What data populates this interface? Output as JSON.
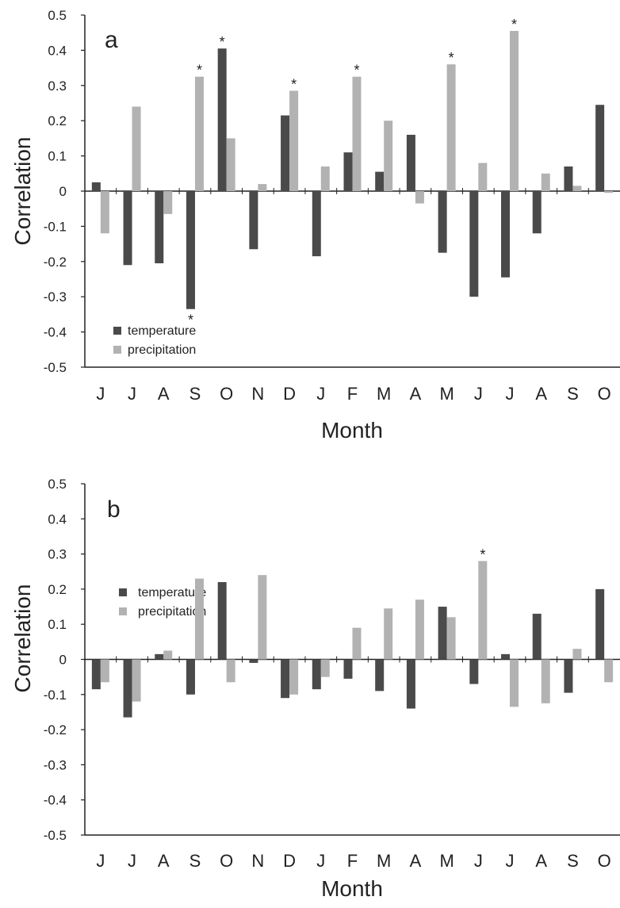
{
  "colors": {
    "temperature": "#4a4a4a",
    "precipitation": "#b2b2b2",
    "axis": "#222222"
  },
  "chart_data": [
    {
      "type": "bar",
      "panel_label": "a",
      "categories": [
        "J",
        "J",
        "A",
        "S",
        "O",
        "N",
        "D",
        "J",
        "F",
        "M",
        "A",
        "M",
        "J",
        "J",
        "A",
        "S",
        "O"
      ],
      "xlabel": "Month",
      "ylabel": "Correlation",
      "ylim": [
        -0.5,
        0.5
      ],
      "yticks": [
        "0.5",
        "0.4",
        "0.3",
        "0.2",
        "0.1",
        "0",
        "-0.1",
        "-0.2",
        "-0.3",
        "-0.4",
        "-0.5"
      ],
      "legend_position": "bottom-left",
      "series": [
        {
          "name": "temperature",
          "values": [
            0.025,
            -0.21,
            -0.205,
            -0.335,
            0.405,
            -0.165,
            0.215,
            -0.185,
            0.11,
            0.055,
            0.16,
            -0.175,
            -0.3,
            -0.245,
            -0.12,
            0.07,
            0.245
          ]
        },
        {
          "name": "precipitation",
          "values": [
            -0.12,
            0.24,
            -0.065,
            0.325,
            0.15,
            0.02,
            0.285,
            0.07,
            0.325,
            0.2,
            -0.035,
            0.36,
            0.08,
            0.455,
            0.05,
            0.015,
            -0.005
          ]
        }
      ],
      "significance_markers": [
        {
          "category_index": 3,
          "series": "temperature",
          "mark": "*"
        },
        {
          "category_index": 3,
          "series": "precipitation",
          "mark": "*"
        },
        {
          "category_index": 4,
          "series": "temperature",
          "mark": "*"
        },
        {
          "category_index": 6,
          "series": "precipitation",
          "mark": "*"
        },
        {
          "category_index": 8,
          "series": "precipitation",
          "mark": "*"
        },
        {
          "category_index": 11,
          "series": "precipitation",
          "mark": "*"
        },
        {
          "category_index": 13,
          "series": "precipitation",
          "mark": "*"
        }
      ]
    },
    {
      "type": "bar",
      "panel_label": "b",
      "categories": [
        "J",
        "J",
        "A",
        "S",
        "O",
        "N",
        "D",
        "J",
        "F",
        "M",
        "A",
        "M",
        "J",
        "J",
        "A",
        "S",
        "O"
      ],
      "xlabel": "Month",
      "ylabel": "Correlation",
      "ylim": [
        -0.5,
        0.5
      ],
      "yticks": [
        "0.5",
        "0.4",
        "0.3",
        "0.2",
        "0.1",
        "0",
        "-0.1",
        "-0.2",
        "-0.3",
        "-0.4",
        "-0.5"
      ],
      "legend_position": "bottom-left",
      "series": [
        {
          "name": "temperature",
          "values": [
            -0.085,
            -0.165,
            0.015,
            -0.1,
            0.22,
            -0.01,
            -0.11,
            -0.085,
            -0.055,
            -0.09,
            -0.14,
            0.15,
            -0.07,
            0.015,
            0.13,
            -0.095,
            0.2
          ]
        },
        {
          "name": "precipitation",
          "values": [
            -0.065,
            -0.12,
            0.025,
            0.23,
            -0.065,
            0.24,
            -0.1,
            -0.05,
            0.09,
            0.145,
            0.17,
            0.12,
            0.28,
            -0.135,
            -0.125,
            0.03,
            -0.065
          ]
        }
      ],
      "significance_markers": [
        {
          "category_index": 12,
          "series": "precipitation",
          "mark": "*"
        }
      ]
    }
  ]
}
